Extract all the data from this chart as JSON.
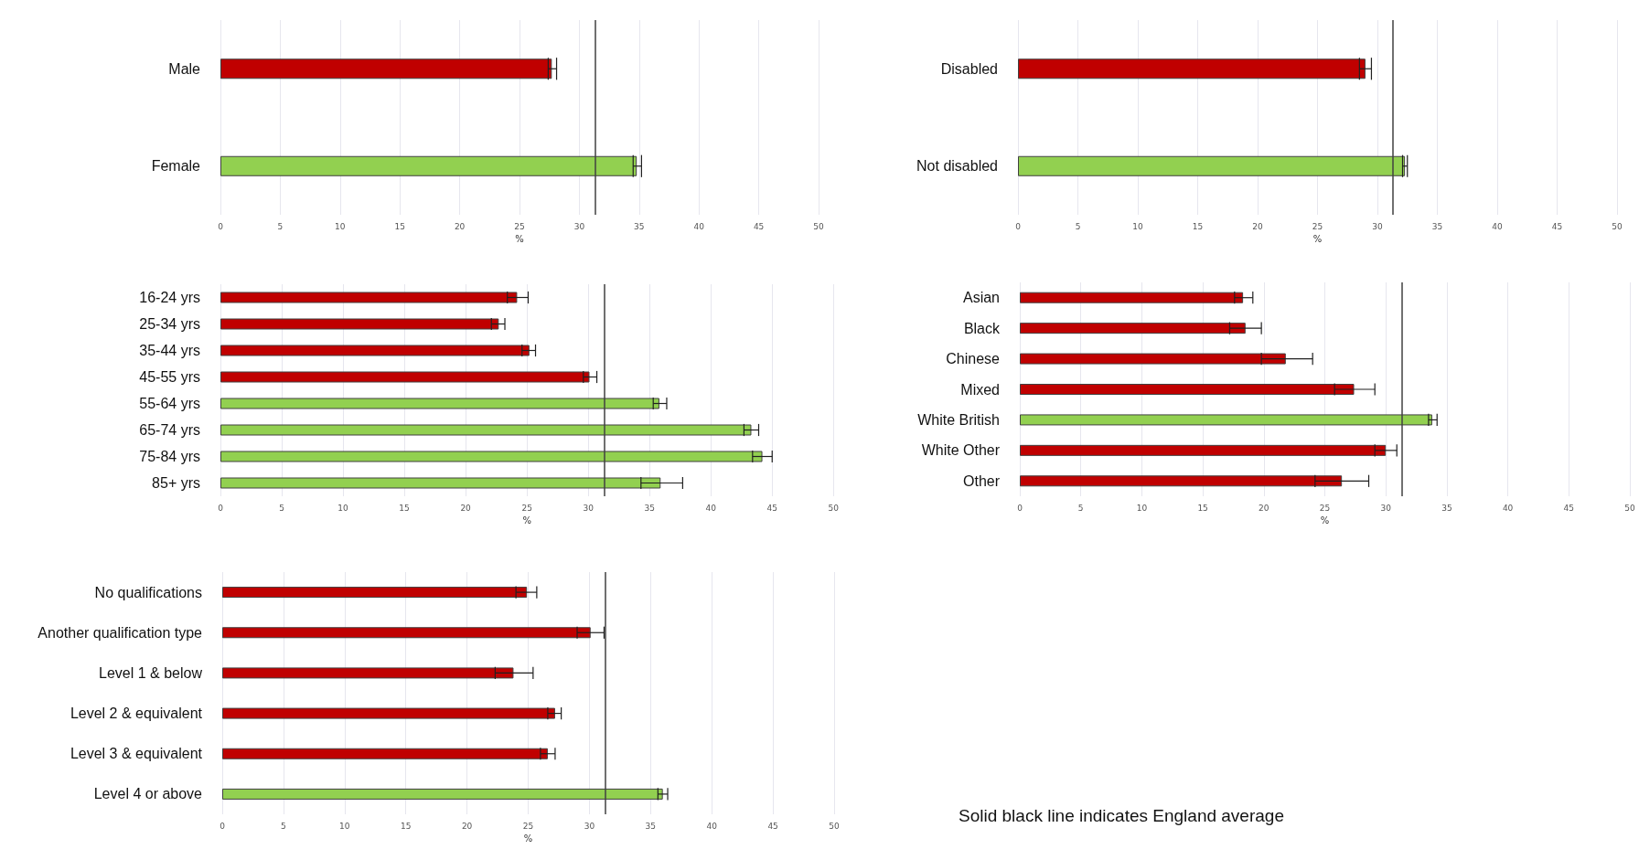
{
  "chart_data": [
    {
      "type": "bar",
      "orientation": "horizontal",
      "categories": [
        "Male",
        "Female"
      ],
      "values": [
        27.7,
        34.8
      ],
      "colors": [
        "#c00000",
        "#92d050"
      ],
      "errors": [
        [
          27.4,
          28.1
        ],
        [
          34.5,
          35.2
        ]
      ],
      "xlim": [
        0,
        50
      ],
      "xticks": [
        0,
        5,
        10,
        15,
        20,
        25,
        30,
        35,
        40,
        45,
        50
      ],
      "xlabel": "%",
      "grid": "x",
      "ref_lines": [
        {
          "axis": "x",
          "value": 31.3,
          "color": "#404040"
        }
      ]
    },
    {
      "type": "bar",
      "orientation": "horizontal",
      "categories": [
        "Disabled",
        "Not disabled"
      ],
      "values": [
        29.0,
        32.3
      ],
      "colors": [
        "#c00000",
        "#92d050"
      ],
      "errors": [
        [
          28.5,
          29.5
        ],
        [
          32.1,
          32.5
        ]
      ],
      "xlim": [
        0,
        50
      ],
      "xticks": [
        0,
        5,
        10,
        15,
        20,
        25,
        30,
        35,
        40,
        45,
        50
      ],
      "xlabel": "%",
      "grid": "x",
      "ref_lines": [
        {
          "axis": "x",
          "value": 31.3,
          "color": "#404040"
        }
      ]
    },
    {
      "type": "bar",
      "orientation": "horizontal",
      "categories": [
        "16-24 yrs",
        "25-34 yrs",
        "35-44 yrs",
        "45-55 yrs",
        "55-64 yrs",
        "65-74 yrs",
        "75-84 yrs",
        "85+ yrs"
      ],
      "values": [
        24.2,
        22.7,
        25.2,
        30.1,
        35.8,
        43.3,
        44.2,
        35.9
      ],
      "colors": [
        "#c00000",
        "#c00000",
        "#c00000",
        "#c00000",
        "#92d050",
        "#92d050",
        "#92d050",
        "#92d050"
      ],
      "errors": [
        [
          23.4,
          25.1
        ],
        [
          22.1,
          23.2
        ],
        [
          24.6,
          25.7
        ],
        [
          29.6,
          30.7
        ],
        [
          35.3,
          36.4
        ],
        [
          42.7,
          43.9
        ],
        [
          43.4,
          45.0
        ],
        [
          34.3,
          37.7
        ]
      ],
      "xlim": [
        0,
        50
      ],
      "xticks": [
        0,
        5,
        10,
        15,
        20,
        25,
        30,
        35,
        40,
        45,
        50
      ],
      "xlabel": "%",
      "grid": "x",
      "ref_lines": [
        {
          "axis": "x",
          "value": 31.3,
          "color": "#404040"
        }
      ]
    },
    {
      "type": "bar",
      "orientation": "horizontal",
      "categories": [
        "Asian",
        "Black",
        "Chinese",
        "Mixed",
        "White British",
        "White Other",
        "Other"
      ],
      "values": [
        18.3,
        18.5,
        21.8,
        27.4,
        33.8,
        30.0,
        26.4
      ],
      "colors": [
        "#c00000",
        "#c00000",
        "#c00000",
        "#c00000",
        "#92d050",
        "#c00000",
        "#c00000"
      ],
      "errors": [
        [
          17.6,
          19.1
        ],
        [
          17.2,
          19.8
        ],
        [
          19.8,
          24.0
        ],
        [
          25.8,
          29.1
        ],
        [
          33.5,
          34.2
        ],
        [
          29.1,
          30.9
        ],
        [
          24.2,
          28.6
        ]
      ],
      "xlim": [
        0,
        50
      ],
      "xticks": [
        0,
        5,
        10,
        15,
        20,
        25,
        30,
        35,
        40,
        45,
        50
      ],
      "xlabel": "%",
      "grid": "x",
      "ref_lines": [
        {
          "axis": "x",
          "value": 31.3,
          "color": "#404040"
        }
      ]
    },
    {
      "type": "bar",
      "orientation": "horizontal",
      "categories": [
        "No qualifications",
        "Another qualification type",
        "Level 1 & below",
        "Level 2 & equivalent",
        "Level 3 & equivalent",
        "Level 4 or above"
      ],
      "values": [
        24.9,
        30.1,
        23.8,
        27.2,
        26.6,
        36.0
      ],
      "colors": [
        "#c00000",
        "#c00000",
        "#c00000",
        "#c00000",
        "#c00000",
        "#92d050"
      ],
      "errors": [
        [
          24.0,
          25.7
        ],
        [
          29.0,
          31.2
        ],
        [
          22.3,
          25.4
        ],
        [
          26.6,
          27.7
        ],
        [
          26.0,
          27.2
        ],
        [
          35.6,
          36.4
        ]
      ],
      "xlim": [
        0,
        50
      ],
      "xticks": [
        0,
        5,
        10,
        15,
        20,
        25,
        30,
        35,
        40,
        45,
        50
      ],
      "xlabel": "%",
      "grid": "x",
      "ref_lines": [
        {
          "axis": "x",
          "value": 31.3,
          "color": "#404040"
        }
      ],
      "annotations": [
        "Solid black line indicates England average"
      ]
    }
  ]
}
